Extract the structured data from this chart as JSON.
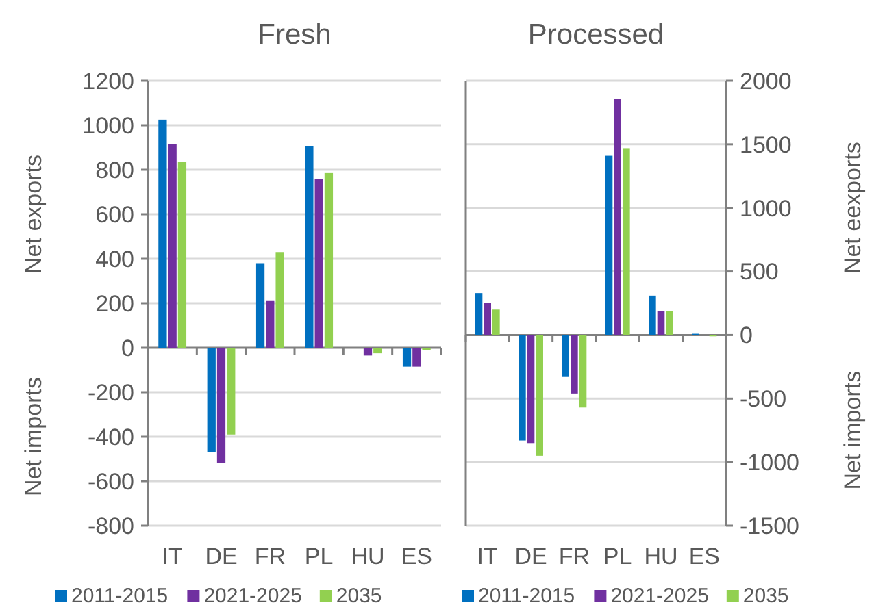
{
  "chart_data": [
    {
      "type": "bar",
      "title": "Fresh",
      "ylabel": "Net exports",
      "annotations": [
        "Net imports"
      ],
      "categories": [
        "IT",
        "DE",
        "FR",
        "PL",
        "HU",
        "ES"
      ],
      "series": [
        {
          "name": "2011-2015",
          "color": "#0070c0",
          "values": [
            1025,
            -470,
            380,
            905,
            0,
            -85
          ]
        },
        {
          "name": "2021-2025",
          "color": "#7030a0",
          "values": [
            915,
            -520,
            210,
            760,
            -35,
            -85
          ]
        },
        {
          "name": "2035",
          "color": "#92d050",
          "values": [
            835,
            -390,
            430,
            785,
            -25,
            -10
          ]
        }
      ],
      "ylim": [
        -800,
        1200
      ],
      "yticks": [
        -800,
        -600,
        -400,
        -200,
        0,
        200,
        400,
        600,
        800,
        1000,
        1200
      ],
      "grid": "y",
      "legend": "bottom"
    },
    {
      "type": "bar",
      "title": "Processed",
      "y2label": "Net eexports",
      "annotations": [
        "Net imports"
      ],
      "categories": [
        "IT",
        "DE",
        "FR",
        "PL",
        "HU",
        "ES"
      ],
      "series": [
        {
          "name": "2011-2015",
          "color": "#0070c0",
          "axis": "y2",
          "values": [
            330,
            -830,
            -330,
            1410,
            310,
            10
          ]
        },
        {
          "name": "2021-2025",
          "color": "#7030a0",
          "axis": "y2",
          "values": [
            250,
            -850,
            -460,
            1860,
            190,
            0
          ]
        },
        {
          "name": "2035",
          "color": "#92d050",
          "axis": "y2",
          "values": [
            200,
            -950,
            -570,
            1470,
            190,
            -10
          ]
        }
      ],
      "y2lim": [
        -1500,
        2000
      ],
      "y2ticks": [
        -1500,
        -1000,
        -500,
        0,
        500,
        1000,
        1500,
        2000
      ],
      "grid": "y",
      "legend": "bottom"
    }
  ]
}
